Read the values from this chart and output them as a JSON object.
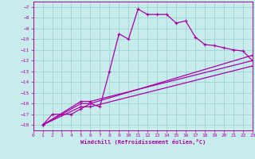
{
  "xlabel": "Windchill (Refroidissement éolien,°C)",
  "bg_color": "#c8ecec",
  "grid_color": "#a0d8d8",
  "line_color": "#aa00aa",
  "xlim": [
    0,
    23
  ],
  "ylim": [
    -18.5,
    -6.5
  ],
  "xticks": [
    0,
    1,
    2,
    3,
    4,
    5,
    6,
    7,
    8,
    9,
    10,
    11,
    12,
    13,
    14,
    15,
    16,
    17,
    18,
    19,
    20,
    21,
    22,
    23
  ],
  "yticks": [
    -7,
    -8,
    -9,
    -10,
    -11,
    -12,
    -13,
    -14,
    -15,
    -16,
    -17,
    -18
  ],
  "line1_x": [
    1,
    2,
    3,
    4,
    5,
    6,
    7,
    8,
    9,
    10,
    11,
    12,
    13,
    14,
    15,
    16,
    17,
    18,
    19,
    20,
    21,
    22,
    23
  ],
  "line1_y": [
    -18,
    -17,
    -17,
    -17,
    -16.5,
    -16,
    -16.3,
    -13,
    -9.5,
    -10,
    -7.2,
    -7.7,
    -7.7,
    -7.7,
    -8.5,
    -8.3,
    -9.8,
    -10.5,
    -10.6,
    -10.8,
    -11,
    -11.1,
    -12
  ],
  "line2_x": [
    1,
    5,
    6,
    23
  ],
  "line2_y": [
    -18,
    -15.8,
    -15.8,
    -12
  ],
  "line3_x": [
    1,
    5,
    6,
    23
  ],
  "line3_y": [
    -18,
    -16.0,
    -16.0,
    -11.5
  ],
  "line4_x": [
    1,
    5,
    6,
    23
  ],
  "line4_y": [
    -18,
    -16.3,
    -16.3,
    -12.5
  ],
  "marker": "+"
}
